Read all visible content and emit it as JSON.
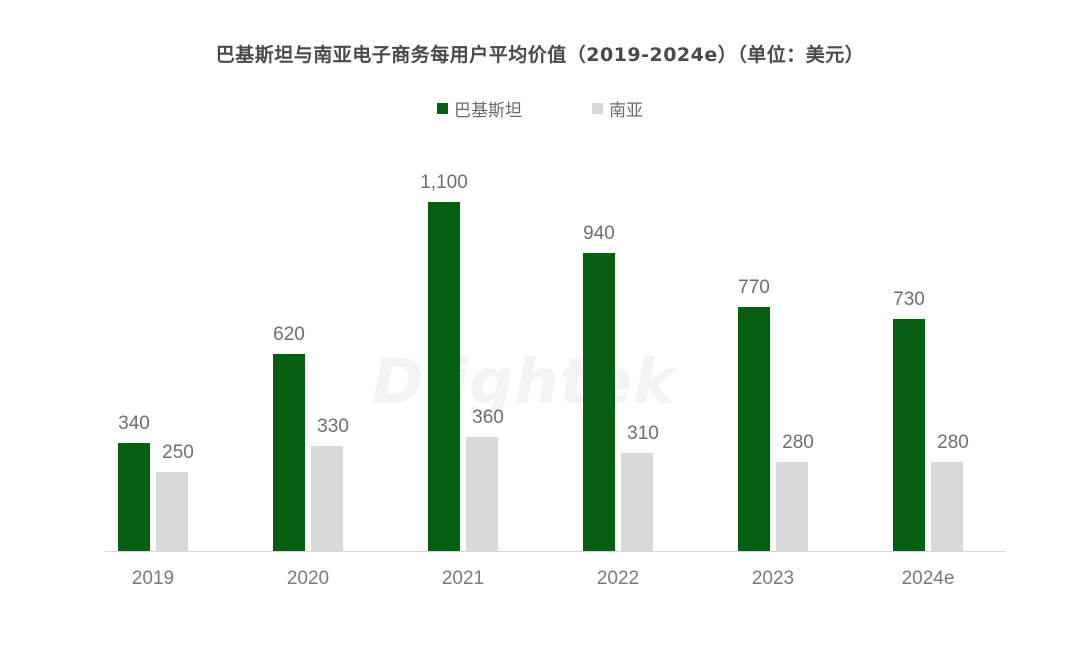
{
  "title": "巴基斯坦与南亚电子商务每用户平均价值（2019-2024e）（单位：美元）",
  "legend": [
    {
      "label": "巴基斯坦",
      "color": "#055f10"
    },
    {
      "label": "南亚",
      "color": "#d9d9d9"
    }
  ],
  "watermark": "Dlightek",
  "chart_data": {
    "type": "bar",
    "title": "巴基斯坦与南亚电子商务每用户平均价值（2019-2024e）（单位：美元）",
    "xlabel": "",
    "ylabel": "",
    "categories": [
      "2019",
      "2020",
      "2021",
      "2022",
      "2023",
      "2024e"
    ],
    "series": [
      {
        "name": "巴基斯坦",
        "color": "#055f10",
        "values": [
          340,
          620,
          1100,
          940,
          770,
          730
        ]
      },
      {
        "name": "南亚",
        "color": "#d9d9d9",
        "values": [
          250,
          330,
          360,
          310,
          280,
          280
        ]
      }
    ],
    "value_labels": {
      "巴基斯坦": [
        "340",
        "620",
        "1,100",
        "940",
        "770",
        "730"
      ],
      "南亚": [
        "250",
        "330",
        "360",
        "310",
        "280",
        "280"
      ]
    },
    "ylim": [
      0,
      1100
    ],
    "grid": false,
    "y_axis_visible": false,
    "legend_position": "top-center"
  }
}
